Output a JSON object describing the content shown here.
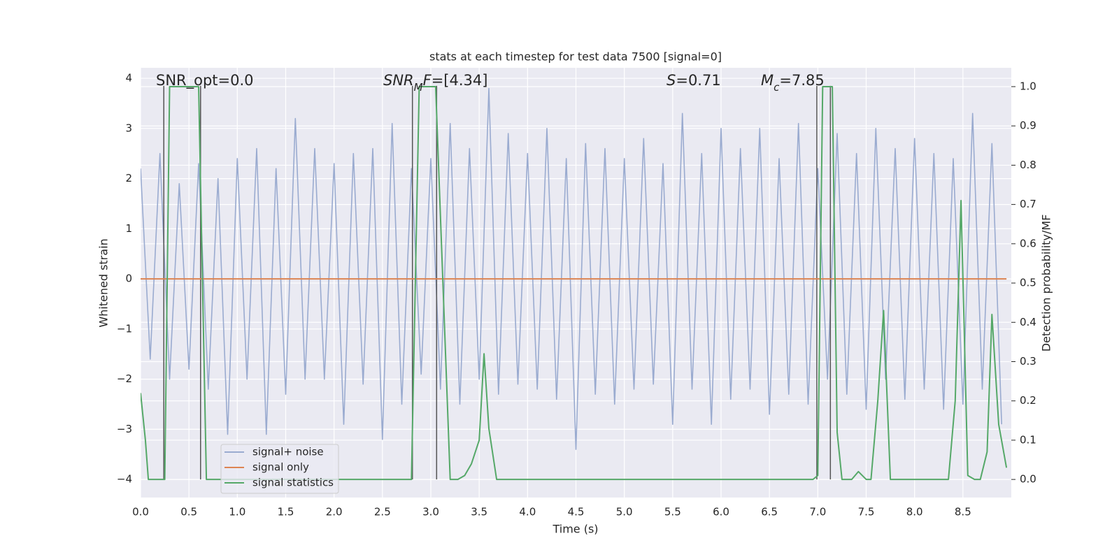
{
  "chart_data": {
    "type": "line",
    "title": "stats at each timestep for test data 7500 [signal=0]",
    "xlabel": "Time (s)",
    "ylabel": "Whitened strain",
    "y2label": "Detection probability/MF",
    "xlim": [
      0,
      9.0
    ],
    "ylim": [
      -4.36,
      4.21
    ],
    "y2lim": [
      -0.046,
      1.048
    ],
    "xticks": [
      {
        "value": 0,
        "label": "0.0"
      },
      0.5,
      {
        "value": 1,
        "label": "1.0"
      },
      1.5,
      {
        "value": 2,
        "label": "2.0"
      },
      2.5,
      {
        "value": 3,
        "label": "3.0"
      },
      3.5,
      {
        "value": 4,
        "label": "4.0"
      },
      4.5,
      {
        "value": 5,
        "label": "5.0"
      },
      5.5,
      {
        "value": 6,
        "label": "6.0"
      },
      6.5,
      {
        "value": 7,
        "label": "7.0"
      },
      7.5,
      {
        "value": 8,
        "label": "8.0"
      },
      8.5
    ],
    "yticks": [
      {
        "value": -4,
        "label": "−4"
      },
      {
        "value": -3,
        "label": "−3"
      },
      {
        "value": -2,
        "label": "−2"
      },
      {
        "value": -1,
        "label": "−1"
      },
      0,
      1,
      2,
      3,
      4
    ],
    "y2ticks": [
      {
        "value": 0,
        "label": "0.0"
      },
      0.1,
      0.2,
      0.3,
      0.4,
      0.5,
      0.6,
      0.7,
      0.8,
      0.9,
      {
        "value": 1,
        "label": "1.0"
      }
    ],
    "grid": true,
    "legend": "lower left",
    "series": [
      {
        "name": "signal+ noise",
        "color": "#9aabd0",
        "x": [
          0.0,
          0.1,
          0.2,
          0.3,
          0.4,
          0.5,
          0.6,
          0.7,
          0.8,
          0.9,
          1.0,
          1.1,
          1.2,
          1.3,
          1.4,
          1.5,
          1.6,
          1.7,
          1.8,
          1.9,
          2.0,
          2.1,
          2.2,
          2.3,
          2.4,
          2.5,
          2.6,
          2.7,
          2.8,
          2.9,
          3.0,
          3.1,
          3.2,
          3.3,
          3.4,
          3.5,
          3.6,
          3.7,
          3.8,
          3.9,
          4.0,
          4.1,
          4.2,
          4.3,
          4.4,
          4.5,
          4.6,
          4.7,
          4.8,
          4.9,
          5.0,
          5.1,
          5.2,
          5.3,
          5.4,
          5.5,
          5.6,
          5.7,
          5.8,
          5.9,
          6.0,
          6.1,
          6.2,
          6.3,
          6.4,
          6.5,
          6.6,
          6.7,
          6.8,
          6.9,
          7.0,
          7.1,
          7.2,
          7.3,
          7.4,
          7.5,
          7.6,
          7.7,
          7.8,
          7.9,
          8.0,
          8.1,
          8.2,
          8.3,
          8.4,
          8.5,
          8.6,
          8.7,
          8.8,
          8.9
        ],
        "values": [
          2.2,
          -1.6,
          2.5,
          -2.0,
          1.9,
          -1.8,
          2.3,
          -2.2,
          2.0,
          -3.1,
          2.4,
          -2.0,
          2.6,
          -3.1,
          2.2,
          -2.3,
          3.2,
          -2.0,
          2.6,
          -2.0,
          2.3,
          -2.9,
          2.5,
          -2.1,
          2.6,
          -3.2,
          3.1,
          -2.5,
          2.2,
          -1.9,
          2.4,
          -2.2,
          3.1,
          -2.5,
          2.6,
          -2.0,
          3.8,
          -2.3,
          2.9,
          -2.1,
          2.5,
          -2.2,
          3.0,
          -2.4,
          2.4,
          -3.4,
          2.7,
          -2.3,
          2.6,
          -2.5,
          2.4,
          -2.2,
          2.8,
          -2.1,
          2.3,
          -2.9,
          3.3,
          -2.2,
          2.5,
          -2.9,
          3.0,
          -2.4,
          2.6,
          -2.2,
          3.0,
          -2.7,
          2.4,
          -2.3,
          3.1,
          -2.5,
          2.2,
          -2.0,
          2.9,
          -2.3,
          2.5,
          -2.6,
          3.0,
          -2.0,
          2.6,
          -2.4,
          2.8,
          -2.2,
          2.5,
          -2.6,
          2.4,
          -2.5,
          3.3,
          -2.2,
          2.7,
          -2.9
        ]
      },
      {
        "name": "signal only",
        "color": "#dd8452",
        "x": [
          0.0,
          8.95
        ],
        "values": [
          0,
          0
        ]
      },
      {
        "name": "signal statistics",
        "color": "#55a868",
        "axis": "y2",
        "x": [
          0.0,
          0.05,
          0.08,
          0.25,
          0.3,
          0.6,
          0.68,
          2.8,
          2.88,
          3.05,
          3.2,
          3.28,
          3.35,
          3.42,
          3.5,
          3.55,
          3.6,
          3.68,
          6.95,
          7.0,
          7.05,
          7.15,
          7.2,
          7.25,
          7.35,
          7.42,
          7.5,
          7.55,
          7.62,
          7.68,
          7.75,
          8.35,
          8.42,
          8.48,
          8.55,
          8.62,
          8.68,
          8.75,
          8.8,
          8.87,
          8.95
        ],
        "values": [
          0.22,
          0.1,
          0.0,
          0.0,
          1.0,
          1.0,
          0.0,
          0.0,
          1.0,
          1.0,
          0.0,
          0.0,
          0.01,
          0.04,
          0.1,
          0.32,
          0.13,
          0.0,
          0.0,
          0.01,
          1.0,
          1.0,
          0.12,
          0.0,
          0.0,
          0.02,
          0.0,
          0.0,
          0.2,
          0.43,
          0.0,
          0.0,
          0.2,
          0.71,
          0.01,
          0.0,
          0.0,
          0.07,
          0.42,
          0.14,
          0.03
        ]
      }
    ],
    "vlines": {
      "color": "#555555",
      "x": [
        0.24,
        0.62,
        2.81,
        3.06,
        6.99,
        7.13
      ],
      "ymin": -4,
      "ymax": 3.85
    },
    "annotations": [
      {
        "parts": [
          {
            "text": "SNR_opt=0.0"
          }
        ]
      },
      {
        "parts": [
          {
            "text": "SNR",
            "italic": true
          },
          {
            "text": "M",
            "italic": true,
            "sub": true
          },
          {
            "text": "F",
            "italic": true
          },
          {
            "text": "=[4.34]"
          }
        ]
      },
      {
        "parts": [
          {
            "text": "S",
            "italic": true
          },
          {
            "text": "=0.71"
          }
        ]
      },
      {
        "parts": [
          {
            "text": "M",
            "italic": true
          },
          {
            "text": "c",
            "italic": true,
            "sub": true
          },
          {
            "text": "=7.85"
          }
        ]
      }
    ]
  }
}
